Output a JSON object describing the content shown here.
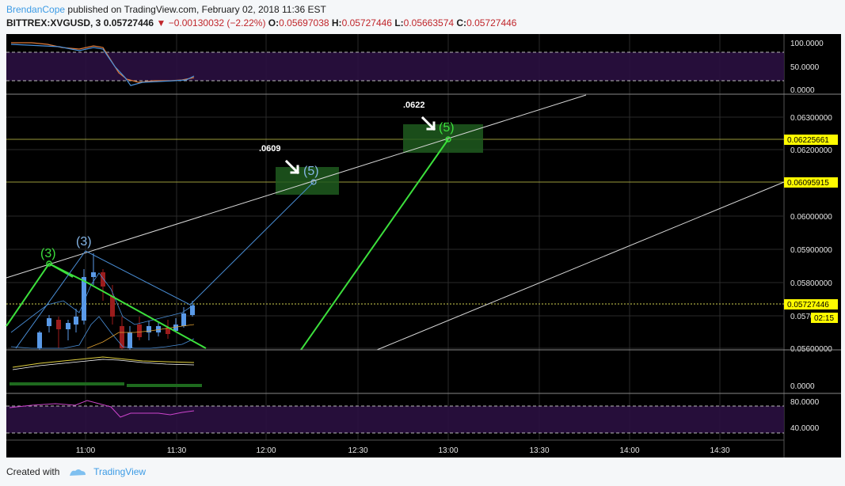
{
  "header": {
    "author": "BrendanCope",
    "published": " published on TradingView.com, February 02, 2018 11:36 EST",
    "symbol": "BITTREX:XVGUSD, 3",
    "last": "0.05727446",
    "change": "−0.00130032 (−2.22%)",
    "open_label": "O:",
    "open": "0.05697038",
    "high_label": "H:",
    "high": "0.05727446",
    "low_label": "L:",
    "low": "0.05663574",
    "close_label": "C:",
    "close": "0.05727446"
  },
  "footer": {
    "created_with": "Created with",
    "brand": "TradingView"
  },
  "colors": {
    "background": "#000000",
    "green_line": "#3ce03c",
    "blue_line": "#4a8fd8",
    "candle_up": "#5a9ae8",
    "candle_down": "#9b1c1c",
    "price_tag": "#fffb00",
    "rsi_band": "#2a1040"
  },
  "chart_data": {
    "type": "candlestick",
    "x_ticks": [
      "11:00",
      "11:30",
      "12:00",
      "12:30",
      "13:00",
      "13:30",
      "14:00",
      "14:30"
    ],
    "price_axis": {
      "ticks": [
        "0.06300000",
        "0.06200000",
        "0.06000000",
        "0.05900000",
        "0.05800000",
        "0.0570",
        "0.05600000"
      ],
      "ylim": [
        0.0556,
        0.0636
      ]
    },
    "price_tags": [
      {
        "label": "0.06225661",
        "value": 0.06225661
      },
      {
        "label": "0.06095915",
        "value": 0.06095915
      },
      {
        "label": "0.05727446",
        "value": 0.05727446
      }
    ],
    "countdown": "02:15",
    "top_osc": {
      "ticks": [
        "100.0000",
        "50.0000",
        "0.0000"
      ]
    },
    "volume_osc": {
      "ticks": [
        "0.0000"
      ]
    },
    "bottom_osc": {
      "ticks": [
        "80.0000",
        "40.0000"
      ]
    },
    "annotations": [
      {
        "text": ".0609",
        "time": "12:00"
      },
      {
        "text": ".0622",
        "time": "12:45"
      }
    ],
    "wave_labels": [
      {
        "text": "(3)",
        "style": "green",
        "time": "10:49",
        "price": 0.05852
      },
      {
        "text": "(3)",
        "style": "blue",
        "time": "10:59",
        "price": 0.0588
      },
      {
        "text": "(5)",
        "style": "blue",
        "time": "12:14",
        "price": 0.06095915
      },
      {
        "text": "(5)",
        "style": "green",
        "time": "13:00",
        "price": 0.06225661
      }
    ]
  }
}
